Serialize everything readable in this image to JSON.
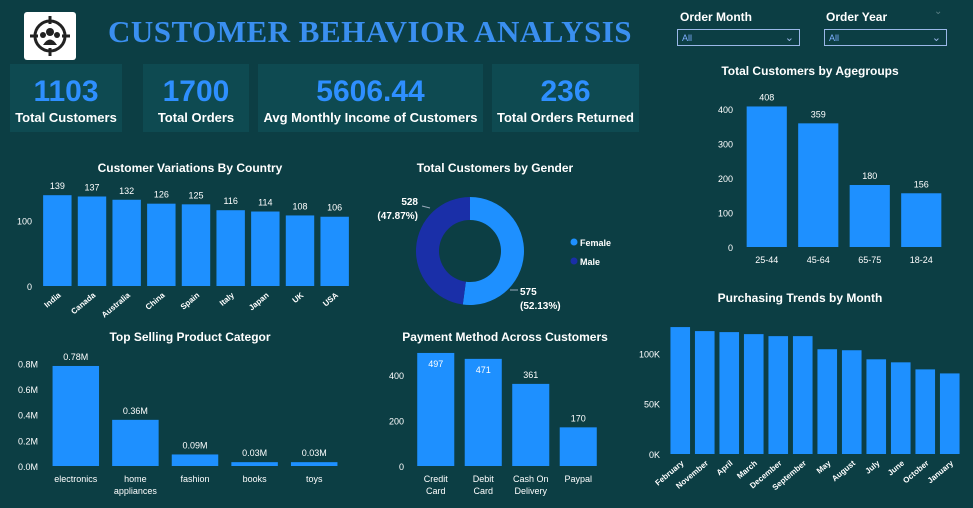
{
  "header": {
    "title": "CUSTOMER BEHAVIOR ANALYSIS",
    "logo_icon": "people-target-icon"
  },
  "filters": {
    "month": {
      "label": "Order Month",
      "value": "All"
    },
    "year": {
      "label": "Order Year",
      "value": "All"
    }
  },
  "kpis": [
    {
      "value": "1103",
      "label": "Total Customers"
    },
    {
      "value": "1700",
      "label": "Total Orders"
    },
    {
      "value": "5606.44",
      "label": "Avg Monthly Income of Customers"
    },
    {
      "value": "236",
      "label": "Total Orders Returned"
    }
  ],
  "colors": {
    "background": "#0c3e44",
    "bar": "#1e90ff",
    "male": "#1a2fa8",
    "female": "#1e90ff",
    "title": "#3a8ff0"
  },
  "chart_data": [
    {
      "id": "country",
      "type": "bar",
      "title": "Customer Variations By Country",
      "categories": [
        "India",
        "Canada",
        "Australia",
        "China",
        "Spain",
        "Italy",
        "Japan",
        "UK",
        "USA"
      ],
      "values": [
        139,
        137,
        132,
        126,
        125,
        116,
        114,
        108,
        106
      ],
      "data_labels": [
        "139",
        "137",
        "132",
        "126",
        "125",
        "116",
        "114",
        "108",
        "106"
      ],
      "yticks": [
        "0",
        "100"
      ],
      "ylim": [
        0,
        150
      ]
    },
    {
      "id": "gender",
      "type": "pie",
      "title": "Total Customers by Gender",
      "categories": [
        "Female",
        "Male"
      ],
      "values": [
        575,
        528
      ],
      "data_labels": [
        "575",
        "528"
      ],
      "percent_labels": [
        "(52.13%)",
        "(47.87%)"
      ],
      "legend": "right"
    },
    {
      "id": "age",
      "type": "bar",
      "title": "Total Customers by Agegroups",
      "categories": [
        "25-44",
        "45-64",
        "65-75",
        "18-24"
      ],
      "values": [
        408,
        359,
        180,
        156
      ],
      "data_labels": [
        "408",
        "359",
        "180",
        "156"
      ],
      "yticks": [
        "0",
        "100",
        "200",
        "300",
        "400"
      ],
      "ylim": [
        0,
        450
      ]
    },
    {
      "id": "product",
      "type": "bar",
      "title": "Top Selling Product Categor",
      "categories": [
        "electronics",
        "home appliances",
        "fashion",
        "books",
        "toys"
      ],
      "values": [
        0.78,
        0.36,
        0.09,
        0.03,
        0.03
      ],
      "data_labels": [
        "0.78M",
        "0.36M",
        "0.09M",
        "0.03M",
        "0.03M"
      ],
      "yticks": [
        "0.0M",
        "0.2M",
        "0.4M",
        "0.6M",
        "0.8M"
      ],
      "ylim": [
        0,
        0.85
      ]
    },
    {
      "id": "payment",
      "type": "bar",
      "title": "Payment Method Across Customers",
      "categories": [
        "Credit Card",
        "Debit Card",
        "Cash On Delivery",
        "Paypal"
      ],
      "values": [
        497,
        471,
        361,
        170
      ],
      "data_labels": [
        "497",
        "471",
        "361",
        "170"
      ],
      "yticks": [
        "0",
        "200",
        "400"
      ],
      "ylim": [
        0,
        510
      ]
    },
    {
      "id": "month",
      "type": "bar",
      "title": "Purchasing Trends by Month",
      "categories": [
        "February",
        "November",
        "April",
        "March",
        "December",
        "September",
        "May",
        "August",
        "July",
        "June",
        "October",
        "January"
      ],
      "values": [
        126,
        122,
        121,
        119,
        117,
        117,
        104,
        103,
        94,
        91,
        84,
        80
      ],
      "yticks": [
        "0K",
        "50K",
        "100K"
      ],
      "ylim": [
        0,
        135
      ]
    }
  ]
}
